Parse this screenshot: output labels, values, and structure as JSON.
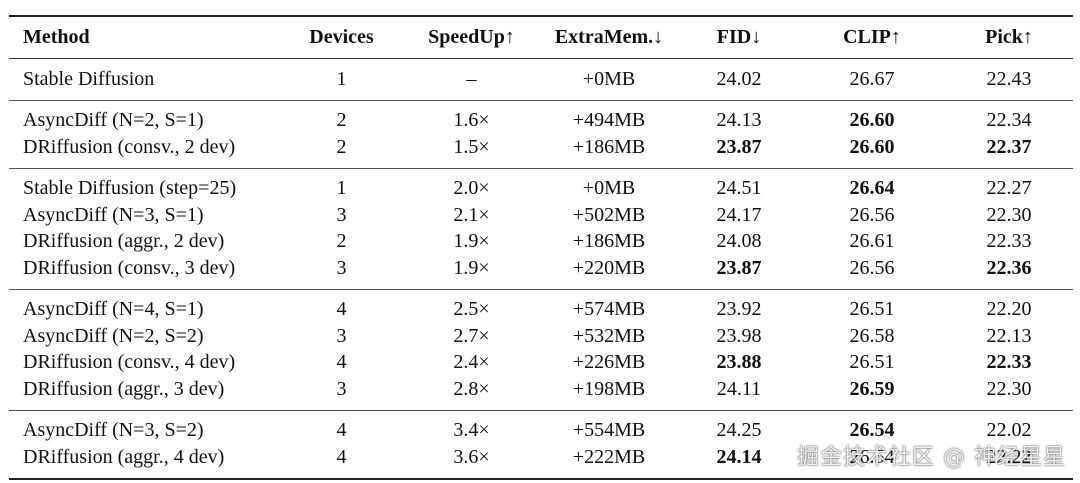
{
  "headers": {
    "method": "Method",
    "devices": "Devices",
    "speedup": "SpeedUp↑",
    "extramem": "ExtraMem.↓",
    "fid": "FID↓",
    "clip": "CLIP↑",
    "pick": "Pick↑"
  },
  "groups": [
    {
      "rows": [
        {
          "method": "Stable Diffusion",
          "devices": "1",
          "speedup": "–",
          "extramem": "+0MB",
          "fid": "24.02",
          "clip": "26.67",
          "pick": "22.43",
          "bold": []
        }
      ]
    },
    {
      "rows": [
        {
          "method": "AsyncDiff (N=2, S=1)",
          "devices": "2",
          "speedup": "1.6×",
          "extramem": "+494MB",
          "fid": "24.13",
          "clip": "26.60",
          "pick": "22.34",
          "bold": [
            "clip"
          ]
        },
        {
          "method": "DRiffusion (consv., 2 dev)",
          "devices": "2",
          "speedup": "1.5×",
          "extramem": "+186MB",
          "fid": "23.87",
          "clip": "26.60",
          "pick": "22.37",
          "bold": [
            "fid",
            "clip",
            "pick"
          ]
        }
      ]
    },
    {
      "rows": [
        {
          "method": "Stable Diffusion (step=25)",
          "devices": "1",
          "speedup": "2.0×",
          "extramem": "+0MB",
          "fid": "24.51",
          "clip": "26.64",
          "pick": "22.27",
          "bold": [
            "clip"
          ]
        },
        {
          "method": "AsyncDiff (N=3, S=1)",
          "devices": "3",
          "speedup": "2.1×",
          "extramem": "+502MB",
          "fid": "24.17",
          "clip": "26.56",
          "pick": "22.30",
          "bold": []
        },
        {
          "method": "DRiffusion (aggr., 2 dev)",
          "devices": "2",
          "speedup": "1.9×",
          "extramem": "+186MB",
          "fid": "24.08",
          "clip": "26.61",
          "pick": "22.33",
          "bold": []
        },
        {
          "method": "DRiffusion (consv., 3 dev)",
          "devices": "3",
          "speedup": "1.9×",
          "extramem": "+220MB",
          "fid": "23.87",
          "clip": "26.56",
          "pick": "22.36",
          "bold": [
            "fid",
            "pick"
          ]
        }
      ]
    },
    {
      "rows": [
        {
          "method": "AsyncDiff (N=4, S=1)",
          "devices": "4",
          "speedup": "2.5×",
          "extramem": "+574MB",
          "fid": "23.92",
          "clip": "26.51",
          "pick": "22.20",
          "bold": []
        },
        {
          "method": "AsyncDiff (N=2, S=2)",
          "devices": "3",
          "speedup": "2.7×",
          "extramem": "+532MB",
          "fid": "23.98",
          "clip": "26.58",
          "pick": "22.13",
          "bold": []
        },
        {
          "method": "DRiffusion (consv., 4 dev)",
          "devices": "4",
          "speedup": "2.4×",
          "extramem": "+226MB",
          "fid": "23.88",
          "clip": "26.51",
          "pick": "22.33",
          "bold": [
            "fid",
            "pick"
          ]
        },
        {
          "method": "DRiffusion (aggr., 3 dev)",
          "devices": "3",
          "speedup": "2.8×",
          "extramem": "+198MB",
          "fid": "24.11",
          "clip": "26.59",
          "pick": "22.30",
          "bold": [
            "clip"
          ]
        }
      ]
    },
    {
      "rows": [
        {
          "method": "AsyncDiff (N=3, S=2)",
          "devices": "4",
          "speedup": "3.4×",
          "extramem": "+554MB",
          "fid": "24.25",
          "clip": "26.54",
          "pick": "22.02",
          "bold": [
            "clip"
          ]
        },
        {
          "method": "DRiffusion (aggr., 4 dev)",
          "devices": "4",
          "speedup": "3.6×",
          "extramem": "+222MB",
          "fid": "24.14",
          "clip": "26.54",
          "pick": "22.22",
          "bold": [
            "fid"
          ]
        }
      ]
    }
  ],
  "watermark": "掘金技术社区 @ 神经星星"
}
